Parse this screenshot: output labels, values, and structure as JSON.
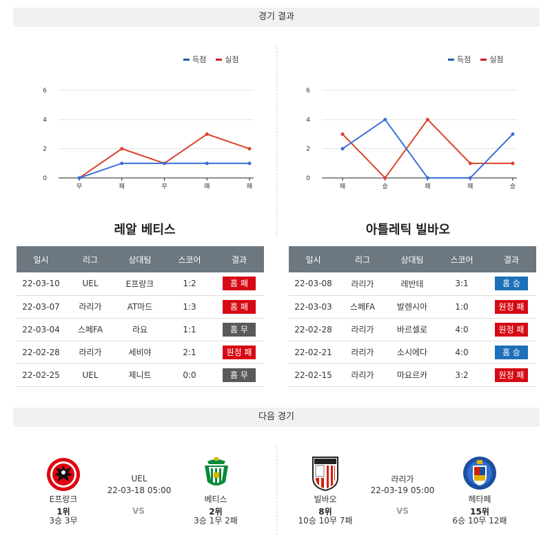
{
  "results_header": "경기 결과",
  "next_header": "다음 경기",
  "legend": {
    "scored": "득점",
    "conceded": "실점"
  },
  "colors": {
    "scored": "#3a6fd8",
    "conceded": "#d9442b",
    "win": "#1c6fb8",
    "loss": "#d60a15",
    "draw": "#595959"
  },
  "chart_data": [
    {
      "type": "line",
      "categories": [
        "무",
        "패",
        "무",
        "패",
        "패"
      ],
      "yticks": [
        0,
        2,
        4,
        6
      ],
      "ylim": [
        0,
        6
      ],
      "series": [
        {
          "name": "득점",
          "values": [
            0,
            1,
            1,
            1,
            1
          ]
        },
        {
          "name": "실점",
          "values": [
            0,
            2,
            1,
            3,
            2
          ]
        }
      ]
    },
    {
      "type": "line",
      "categories": [
        "패",
        "승",
        "패",
        "패",
        "승"
      ],
      "yticks": [
        0,
        2,
        4,
        6
      ],
      "ylim": [
        0,
        6
      ],
      "series": [
        {
          "name": "득점",
          "values": [
            2,
            4,
            0,
            0,
            3
          ]
        },
        {
          "name": "실점",
          "values": [
            3,
            0,
            4,
            1,
            1
          ]
        }
      ]
    }
  ],
  "columns": [
    "일시",
    "리그",
    "상대팀",
    "스코어",
    "결과"
  ],
  "teams": [
    {
      "name": "레알 베티스",
      "rows": [
        {
          "date": "22-03-10",
          "league": "UEL",
          "opponent": "E프랑크",
          "score": "1:2",
          "result": "홈 패",
          "kind": "loss"
        },
        {
          "date": "22-03-07",
          "league": "라리가",
          "opponent": "AT마드",
          "score": "1:3",
          "result": "홈 패",
          "kind": "loss"
        },
        {
          "date": "22-03-04",
          "league": "스페FA",
          "opponent": "라요",
          "score": "1:1",
          "result": "홈 무",
          "kind": "draw"
        },
        {
          "date": "22-02-28",
          "league": "라리가",
          "opponent": "세비야",
          "score": "2:1",
          "result": "원정 패",
          "kind": "loss"
        },
        {
          "date": "22-02-25",
          "league": "UEL",
          "opponent": "제니트",
          "score": "0:0",
          "result": "홈 무",
          "kind": "draw"
        }
      ]
    },
    {
      "name": "아틀레틱 빌바오",
      "rows": [
        {
          "date": "22-03-08",
          "league": "라리가",
          "opponent": "레반테",
          "score": "3:1",
          "result": "홈 승",
          "kind": "win"
        },
        {
          "date": "22-03-03",
          "league": "스페FA",
          "opponent": "발렌시아",
          "score": "1:0",
          "result": "원정 패",
          "kind": "loss"
        },
        {
          "date": "22-02-28",
          "league": "라리가",
          "opponent": "바르셀로",
          "score": "4:0",
          "result": "원정 패",
          "kind": "loss"
        },
        {
          "date": "22-02-21",
          "league": "라리가",
          "opponent": "소시에다",
          "score": "4:0",
          "result": "홈 승",
          "kind": "win"
        },
        {
          "date": "22-02-15",
          "league": "라리가",
          "opponent": "마요르카",
          "score": "3:2",
          "result": "원정 패",
          "kind": "loss"
        }
      ]
    }
  ],
  "next_matches": [
    {
      "league": "UEL",
      "datetime": "22-03-18 05:00",
      "vs": "VS",
      "home": {
        "name": "E프랑크",
        "rank": "1위",
        "record": "3승 3무"
      },
      "away": {
        "name": "베티스",
        "rank": "2위",
        "record": "3승 1무 2패"
      }
    },
    {
      "league": "라리가",
      "datetime": "22-03-19 05:00",
      "vs": "VS",
      "home": {
        "name": "빌바오",
        "rank": "8위",
        "record": "10승 10무 7패"
      },
      "away": {
        "name": "헤타페",
        "rank": "15위",
        "record": "6승 10무 12패"
      }
    }
  ]
}
